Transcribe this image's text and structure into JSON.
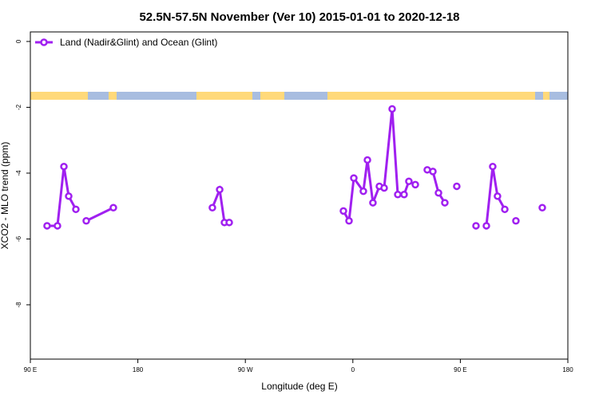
{
  "chart_data": {
    "type": "line",
    "title": "52.5N-57.5N November (Ver 10)   2015-01-01 to 2020-12-18",
    "x_label": "Longitude (deg E)",
    "y_label": "XCO2 - MLO trend (ppm)",
    "x": [
      104.0,
      112.7,
      118.1,
      122.1,
      128.1,
      null,
      136.8,
      159.5,
      null,
      242.4,
      248.5,
      252.5,
      256.5,
      null,
      352.1,
      356.8,
      360.8,
      368.8,
      372.2,
      376.8,
      382.2,
      386.2,
      392.9,
      397.6,
      402.9,
      406.9,
      412.3,
      null,
      422.3,
      427.0,
      431.7,
      437.0,
      null,
      447.0,
      null,
      463.1,
      null,
      471.8,
      477.1,
      481.1,
      487.2,
      null,
      496.5,
      null,
      518.6
    ],
    "series": [
      {
        "name": "Land (Nadir&Glint) and Ocean (Glint)",
        "color": "#a020f0",
        "values": [
          -5.6,
          -5.6,
          -3.8,
          -4.7,
          -5.1,
          null,
          -5.45,
          -5.05,
          null,
          -5.05,
          -4.5,
          -5.5,
          -5.5,
          null,
          -5.15,
          -5.45,
          -4.15,
          -4.55,
          -3.6,
          -4.9,
          -4.4,
          -4.45,
          -2.05,
          -4.65,
          -4.65,
          -4.25,
          -4.35,
          null,
          -3.9,
          -3.95,
          -4.6,
          -4.9,
          null,
          -4.4,
          null,
          -5.6,
          null,
          -5.6,
          -3.8,
          -4.7,
          -5.1,
          null,
          -5.45,
          null,
          -5.05
        ]
      }
    ],
    "xlim": [
      90,
      540
    ],
    "xticks": [
      {
        "value": 90,
        "label": "90 E"
      },
      {
        "value": 180,
        "label": "180"
      },
      {
        "value": 270,
        "label": "90 W"
      },
      {
        "value": 360,
        "label": "0"
      },
      {
        "value": 450,
        "label": "90 E"
      },
      {
        "value": 540,
        "label": "180"
      }
    ],
    "ylim": [
      -9.65,
      0.29
    ],
    "yticks": [
      0,
      -2,
      -4,
      -6,
      -8
    ],
    "legend": "top-left"
  }
}
